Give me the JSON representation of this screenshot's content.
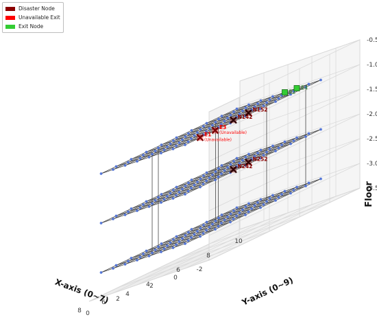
{
  "chart_data": {
    "type": "scatter",
    "subtype": "3d-graph",
    "title": "",
    "xlabel": "X-axis (0~7)",
    "ylabel": "Y-axis (0~9)",
    "zlabel": "Floor",
    "xlim": [
      -2,
      8
    ],
    "ylim": [
      0,
      10
    ],
    "zlim": [
      -3.5,
      -0.5
    ],
    "x_ticks": [
      "-2",
      "0",
      "2",
      "4",
      "6",
      "8"
    ],
    "y_ticks": [
      "0",
      "2",
      "4",
      "6",
      "8",
      "10"
    ],
    "z_ticks": [
      "-3.5",
      "-3.0",
      "-2.5",
      "-2.0",
      "-1.5",
      "-1.0",
      "-0.5"
    ],
    "grid": true,
    "legend_position": "top-left",
    "floors": [
      {
        "z": -1,
        "x_range": [
          0,
          7
        ],
        "y_range": [
          0,
          9
        ]
      },
      {
        "z": -2,
        "x_range": [
          0,
          7
        ],
        "y_range": [
          0,
          9
        ]
      },
      {
        "z": -3,
        "x_range": [
          0,
          7
        ],
        "y_range": [
          0,
          9
        ]
      }
    ],
    "legend": [
      {
        "label": "Disaster Node",
        "color": "#8b0000"
      },
      {
        "label": "Unavailable Exit",
        "color": "#ff0000"
      },
      {
        "label": "Exit Node",
        "color": "#33cc33"
      }
    ],
    "special_nodes": [
      {
        "id": "N152",
        "label": "N152",
        "kind": "disaster",
        "x": 1,
        "y": 5,
        "z": -1
      },
      {
        "id": "N142",
        "label": "N142",
        "kind": "disaster",
        "x": 1,
        "y": 4,
        "z": -1
      },
      {
        "id": "N252",
        "label": "N252",
        "kind": "disaster",
        "x": 1,
        "y": 5,
        "z": -2
      },
      {
        "id": "N242",
        "label": "N242",
        "kind": "disaster",
        "x": 1,
        "y": 4,
        "z": -2
      },
      {
        "id": "E1",
        "label": "E1",
        "sublabel": "(Unavailable)",
        "kind": "unavailable_exit",
        "x": 0,
        "y": 1,
        "z": -1
      },
      {
        "id": "E3",
        "label": "E3",
        "sublabel": "(Unavailable)",
        "kind": "unavailable_exit",
        "x": 0,
        "y": 2,
        "z": -1
      },
      {
        "id": "E2",
        "label": "E2",
        "kind": "exit",
        "x": 3,
        "y": 9,
        "z": -1
      },
      {
        "id": "E4",
        "label": "E4",
        "kind": "exit",
        "x": 2,
        "y": 9,
        "z": -1
      }
    ],
    "colors": {
      "node": "#4a6fd8",
      "edge": "#454545",
      "pane": "#f2f2f2",
      "disaster": "#8b0000",
      "unavailable": "#ff0000",
      "exit": "#33cc33"
    }
  }
}
